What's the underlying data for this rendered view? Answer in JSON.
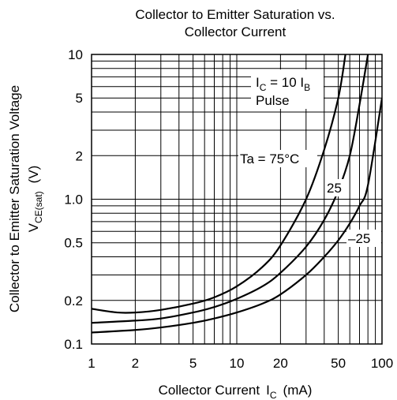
{
  "chart_data": {
    "type": "line",
    "title_line1": "Collector to Emitter Saturation vs.",
    "title_line2": "Collector Current",
    "xlabel": "Collector Current",
    "xlabel_symbol": "I",
    "xlabel_sub": "C",
    "xlabel_unit": "(mA)",
    "ylabel_line1": "Collector to Emitter Saturation Voltage",
    "ylabel_symbol": "V",
    "ylabel_sub": "CE(sat)",
    "ylabel_unit": "(V)",
    "x_scale": "log",
    "y_scale": "log",
    "xlim": [
      1,
      100
    ],
    "ylim": [
      0.1,
      10
    ],
    "x_ticks": [
      {
        "v": 1,
        "label": "1"
      },
      {
        "v": 2,
        "label": "2"
      },
      {
        "v": 5,
        "label": "5"
      },
      {
        "v": 10,
        "label": "10"
      },
      {
        "v": 20,
        "label": "20"
      },
      {
        "v": 50,
        "label": "50"
      },
      {
        "v": 100,
        "label": "100"
      }
    ],
    "y_ticks": [
      {
        "v": 0.1,
        "label": "0.1"
      },
      {
        "v": 0.2,
        "label": "0.2"
      },
      {
        "v": 0.5,
        "label": "0.5"
      },
      {
        "v": 1.0,
        "label": "1.0"
      },
      {
        "v": 2,
        "label": "2"
      },
      {
        "v": 5,
        "label": "5"
      },
      {
        "v": 10,
        "label": "10"
      }
    ],
    "grid": true,
    "condition_symbol": "I",
    "condition_sub1": "C",
    "condition_mid": " = 10 I",
    "condition_sub2": "B",
    "condition_line2": "Pulse",
    "series": [
      {
        "name": "Ta = 75°C",
        "x": [
          1,
          1.5,
          2,
          3,
          5,
          7,
          10,
          15,
          20,
          30,
          40,
          50,
          56
        ],
        "y": [
          0.175,
          0.165,
          0.165,
          0.172,
          0.19,
          0.21,
          0.25,
          0.34,
          0.48,
          1.0,
          2.2,
          5.0,
          10
        ]
      },
      {
        "name": "25",
        "x": [
          1,
          2,
          3,
          5,
          7,
          10,
          15,
          20,
          30,
          40,
          50,
          60,
          70,
          80
        ],
        "y": [
          0.14,
          0.145,
          0.15,
          0.165,
          0.18,
          0.205,
          0.25,
          0.31,
          0.47,
          0.72,
          1.15,
          2.0,
          4.5,
          10
        ]
      },
      {
        "name": "–25",
        "x": [
          1,
          2,
          3,
          5,
          7,
          10,
          15,
          20,
          30,
          40,
          50,
          60,
          70,
          80,
          100
        ],
        "y": [
          0.12,
          0.125,
          0.13,
          0.14,
          0.15,
          0.165,
          0.19,
          0.22,
          0.3,
          0.4,
          0.52,
          0.68,
          0.9,
          1.25,
          5
        ]
      }
    ]
  }
}
